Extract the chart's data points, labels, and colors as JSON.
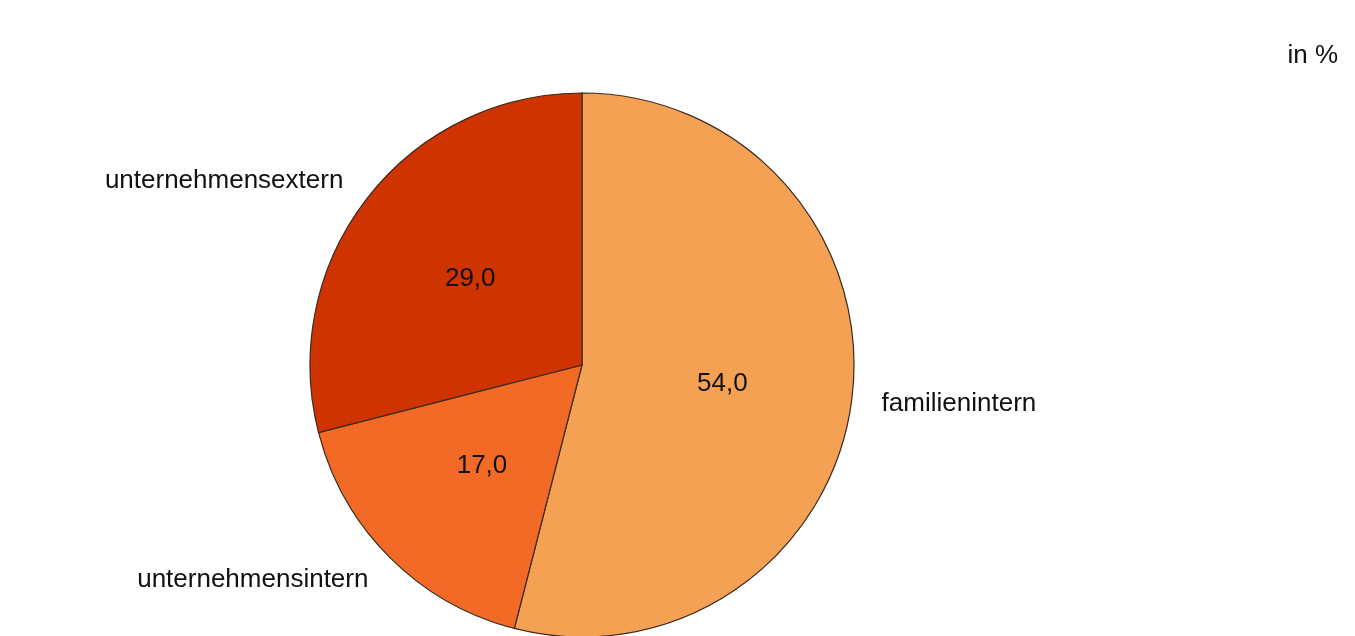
{
  "chart_data": {
    "type": "pie",
    "categories": [
      "familienintern",
      "unternehmensintern",
      "unternehmensextern"
    ],
    "values": [
      54.0,
      17.0,
      29.0
    ],
    "colors": [
      "#f5a153",
      "#f26a25",
      "#cf3300"
    ],
    "value_labels": [
      "54,0",
      "17,0",
      "29,0"
    ],
    "annotations": [
      "in %"
    ]
  }
}
